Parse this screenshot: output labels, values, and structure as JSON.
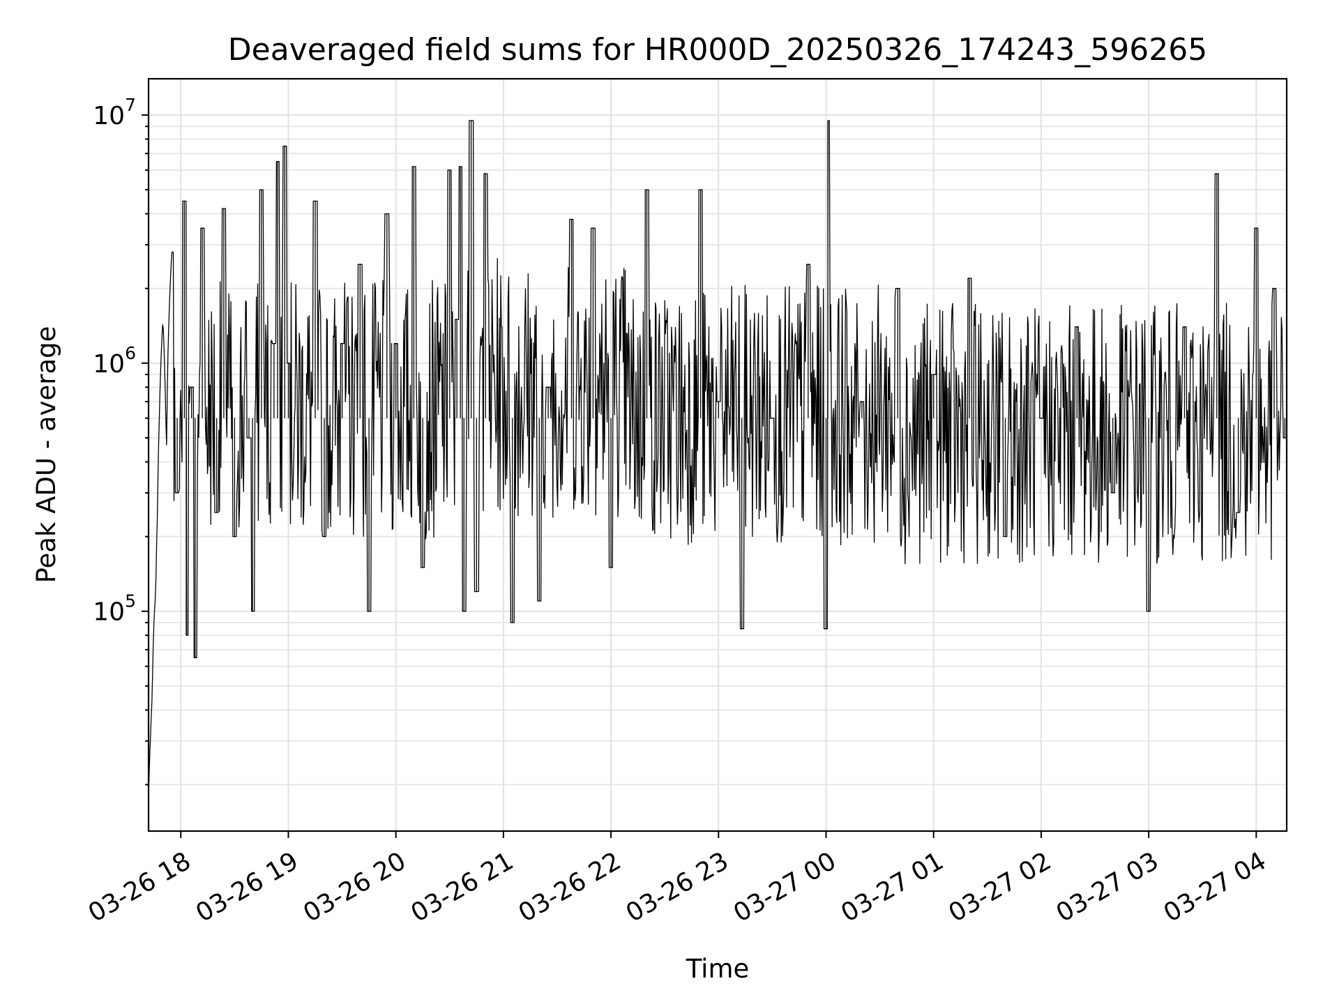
{
  "chart_data": {
    "type": "line",
    "title": "Deaveraged field sums for HR000D_20250326_174243_596265",
    "xlabel": "Time",
    "ylabel": "Peak ADU - average",
    "yscale": "log",
    "ylim": [
      13000,
      14000000
    ],
    "xlim": [
      "2025-03-26 17:42",
      "2025-03-27 04:17"
    ],
    "grid": true,
    "line_color": "#000000",
    "grid_color": "#e2e2e2",
    "x_ticks": [
      {
        "t": "2025-03-26 18:00",
        "label": "03-26 18"
      },
      {
        "t": "2025-03-26 19:00",
        "label": "03-26 19"
      },
      {
        "t": "2025-03-26 20:00",
        "label": "03-26 20"
      },
      {
        "t": "2025-03-26 21:00",
        "label": "03-26 21"
      },
      {
        "t": "2025-03-26 22:00",
        "label": "03-26 22"
      },
      {
        "t": "2025-03-26 23:00",
        "label": "03-26 23"
      },
      {
        "t": "2025-03-27 00:00",
        "label": "03-27 00"
      },
      {
        "t": "2025-03-27 01:00",
        "label": "03-27 01"
      },
      {
        "t": "2025-03-27 02:00",
        "label": "03-27 02"
      },
      {
        "t": "2025-03-27 03:00",
        "label": "03-27 03"
      },
      {
        "t": "2025-03-27 04:00",
        "label": "03-27 04"
      }
    ],
    "y_ticks": [
      {
        "value": 100000,
        "base": "10",
        "exp": "5"
      },
      {
        "value": 1000000,
        "base": "10",
        "exp": "6"
      },
      {
        "value": 10000000,
        "base": "10",
        "exp": "7"
      }
    ],
    "series": [
      {
        "points": [
          [
            "2025-03-26 17:42",
            18000
          ],
          [
            "2025-03-26 17:43",
            30000
          ],
          [
            "2025-03-26 17:44",
            45000
          ],
          [
            "2025-03-26 17:45",
            90000
          ],
          [
            "2025-03-26 17:46",
            120000
          ],
          [
            "2025-03-26 17:47",
            250000
          ],
          [
            "2025-03-26 17:48",
            600000
          ],
          [
            "2025-03-26 17:50",
            1500000
          ],
          [
            "2025-03-26 17:52",
            400000
          ],
          [
            "2025-03-26 17:55",
            2800000
          ],
          [
            "2025-03-26 17:58",
            300000
          ],
          [
            "2025-03-26 18:02",
            4500000
          ],
          [
            "2025-03-26 18:03",
            80000
          ],
          [
            "2025-03-26 18:06",
            800000
          ],
          [
            "2025-03-26 18:08",
            65000
          ],
          [
            "2025-03-26 18:12",
            3500000
          ],
          [
            "2025-03-26 18:20",
            250000
          ],
          [
            "2025-03-26 18:24",
            4200000
          ],
          [
            "2025-03-26 18:30",
            200000
          ],
          [
            "2025-03-26 18:38",
            500000
          ],
          [
            "2025-03-26 18:40",
            100000
          ],
          [
            "2025-03-26 18:45",
            5000000
          ],
          [
            "2025-03-26 18:52",
            1200000
          ],
          [
            "2025-03-26 18:54",
            6500000
          ],
          [
            "2025-03-26 18:58",
            7500000
          ],
          [
            "2025-03-26 19:00",
            1000000
          ],
          [
            "2025-03-26 19:15",
            4500000
          ],
          [
            "2025-03-26 19:20",
            200000
          ],
          [
            "2025-03-26 19:30",
            1200000
          ],
          [
            "2025-03-26 19:40",
            2500000
          ],
          [
            "2025-03-26 19:45",
            100000
          ],
          [
            "2025-03-26 19:55",
            4000000
          ],
          [
            "2025-03-26 20:00",
            1200000
          ],
          [
            "2025-03-26 20:10",
            6200000
          ],
          [
            "2025-03-26 20:15",
            150000
          ],
          [
            "2025-03-26 20:30",
            6000000
          ],
          [
            "2025-03-26 20:34",
            1500000
          ],
          [
            "2025-03-26 20:36",
            6200000
          ],
          [
            "2025-03-26 20:38",
            100000
          ],
          [
            "2025-03-26 20:42",
            9500000
          ],
          [
            "2025-03-26 20:45",
            120000
          ],
          [
            "2025-03-26 20:50",
            5800000
          ],
          [
            "2025-03-26 21:05",
            90000
          ],
          [
            "2025-03-26 21:20",
            110000
          ],
          [
            "2025-03-26 21:25",
            800000
          ],
          [
            "2025-03-26 21:38",
            3800000
          ],
          [
            "2025-03-26 21:50",
            3500000
          ],
          [
            "2025-03-26 22:00",
            150000
          ],
          [
            "2025-03-26 22:20",
            5000000
          ],
          [
            "2025-03-26 22:50",
            5000000
          ],
          [
            "2025-03-26 23:00",
            700000
          ],
          [
            "2025-03-26 23:13",
            85000
          ],
          [
            "2025-03-26 23:30",
            600000
          ],
          [
            "2025-03-26 23:50",
            2500000
          ],
          [
            "2025-03-27 00:00",
            85000
          ],
          [
            "2025-03-27 00:01",
            9500000
          ],
          [
            "2025-03-27 00:20",
            700000
          ],
          [
            "2025-03-27 00:40",
            2000000
          ],
          [
            "2025-03-27 01:00",
            900000
          ],
          [
            "2025-03-27 01:20",
            2200000
          ],
          [
            "2025-03-27 01:40",
            200000
          ],
          [
            "2025-03-27 02:00",
            600000
          ],
          [
            "2025-03-27 02:20",
            1400000
          ],
          [
            "2025-03-27 02:40",
            300000
          ],
          [
            "2025-03-27 03:00",
            100000
          ],
          [
            "2025-03-27 03:20",
            1400000
          ],
          [
            "2025-03-27 03:38",
            5800000
          ],
          [
            "2025-03-27 03:50",
            250000
          ],
          [
            "2025-03-27 04:00",
            3500000
          ],
          [
            "2025-03-27 04:10",
            2000000
          ],
          [
            "2025-03-27 04:16",
            500000
          ]
        ]
      }
    ]
  }
}
